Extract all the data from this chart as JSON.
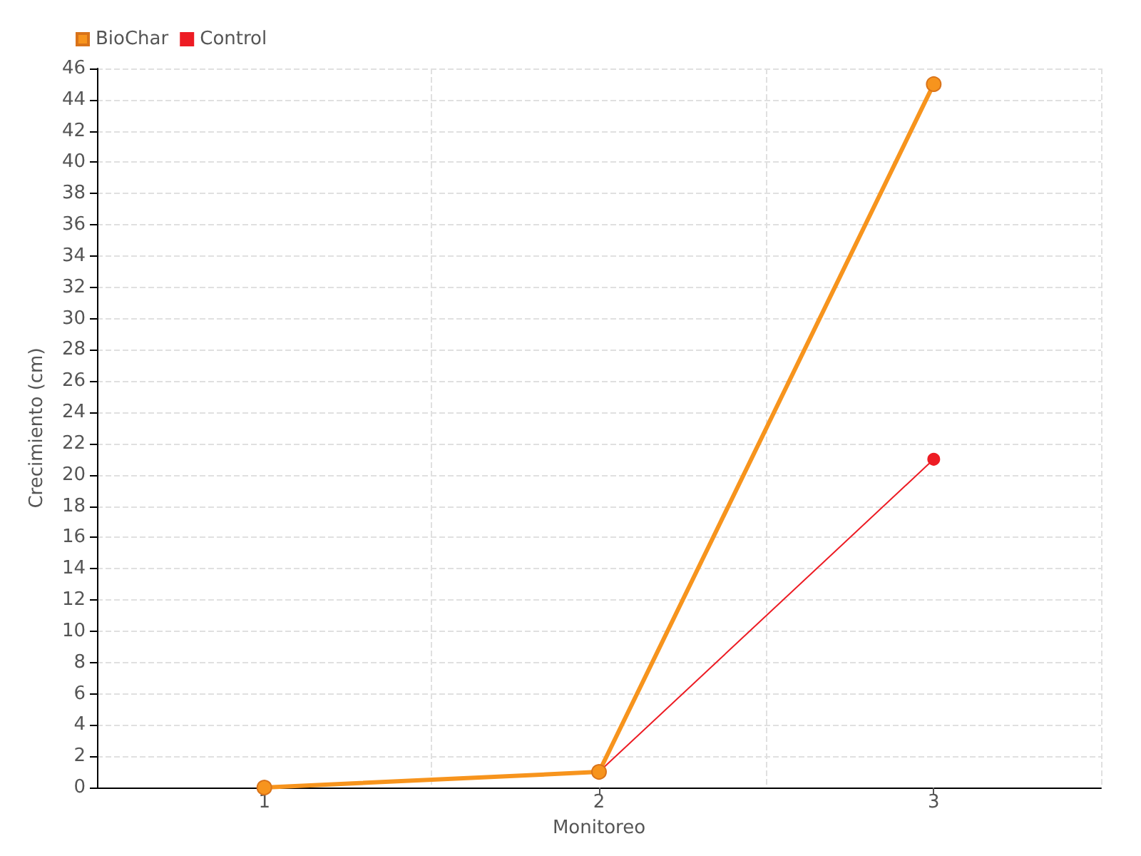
{
  "chart_data": {
    "type": "line",
    "xlabel": "Monitoreo",
    "ylabel": "Crecimiento (cm)",
    "categories": [
      "1",
      "2",
      "3"
    ],
    "series": [
      {
        "name": "BioChar",
        "color": "#f7941d",
        "values": [
          0,
          1,
          45
        ]
      },
      {
        "name": "Control",
        "color": "#ed1c24",
        "values": [
          0,
          1,
          21
        ]
      }
    ],
    "ylim": [
      0,
      46
    ],
    "yticks": [
      0,
      2,
      4,
      6,
      8,
      10,
      12,
      14,
      16,
      18,
      20,
      22,
      24,
      26,
      28,
      30,
      32,
      34,
      36,
      38,
      40,
      42,
      44,
      46
    ],
    "grid": true,
    "legend": "top left",
    "marker": "circle",
    "line_style": "solid"
  }
}
